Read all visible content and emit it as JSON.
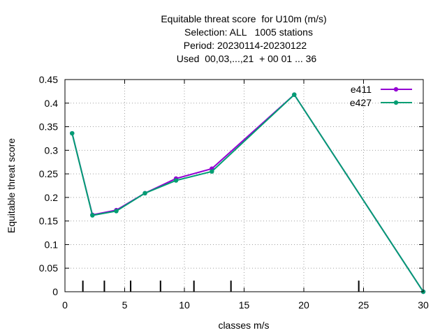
{
  "chart_data": {
    "type": "line",
    "title_lines": [
      "Equitable threat score  for U10m (m/s)",
      "Selection: ALL   1005 stations",
      "Period: 20230114-20230122",
      "Used  00,03,...,21  + 00 01 ... 36"
    ],
    "xlabel": "classes m/s",
    "ylabel": "Equitable threat score",
    "xlim": [
      0,
      30
    ],
    "ylim": [
      0,
      0.45
    ],
    "x_ticks": [
      "0",
      "5",
      "10",
      "15",
      "20",
      "25",
      "30"
    ],
    "y_ticks": [
      "0",
      "0.05",
      "0.1",
      "0.15",
      "0.2",
      "0.25",
      "0.3",
      "0.35",
      "0.4",
      "0.45"
    ],
    "grid": true,
    "legend_position": "top-right",
    "class_markers_x": [
      1.5,
      3.3,
      5.5,
      8,
      10.8,
      13.9,
      24.6
    ],
    "series": [
      {
        "name": "e411",
        "color": "#9400d3",
        "x": [
          0.6,
          2.3,
          4.3,
          6.7,
          9.3,
          12.3,
          19.2,
          30
        ],
        "y": [
          0.336,
          0.163,
          0.173,
          0.209,
          0.24,
          0.261,
          0.418,
          0.0
        ]
      },
      {
        "name": "e427",
        "color": "#009e73",
        "x": [
          0.6,
          2.3,
          4.3,
          6.7,
          9.3,
          12.3,
          19.2,
          30
        ],
        "y": [
          0.336,
          0.162,
          0.171,
          0.209,
          0.236,
          0.255,
          0.418,
          0.0
        ]
      }
    ]
  }
}
